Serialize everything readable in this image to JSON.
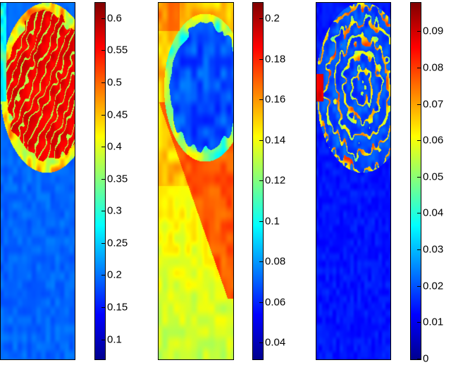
{
  "panels": [
    {
      "name": "panel-1",
      "colorbar": {
        "min": 0.07,
        "max": 0.625,
        "ticks": [
          "0.1",
          "0.15",
          "0.2",
          "0.25",
          "0.3",
          "0.35",
          "0.4",
          "0.45",
          "0.5",
          "0.55",
          "0.6"
        ],
        "values": [
          0.1,
          0.15,
          0.2,
          0.25,
          0.3,
          0.35,
          0.4,
          0.45,
          0.5,
          0.55,
          0.6
        ]
      }
    },
    {
      "name": "panel-2",
      "colorbar": {
        "min": 0.032,
        "max": 0.208,
        "ticks": [
          "0.04",
          "0.06",
          "0.08",
          "0.1",
          "0.12",
          "0.14",
          "0.16",
          "0.18",
          "0.2"
        ],
        "values": [
          0.04,
          0.06,
          0.08,
          0.1,
          0.12,
          0.14,
          0.16,
          0.18,
          0.2
        ]
      }
    },
    {
      "name": "panel-3",
      "colorbar": {
        "min": 0,
        "max": 0.098,
        "ticks": [
          "0",
          "0.01",
          "0.02",
          "0.03",
          "0.04",
          "0.05",
          "0.06",
          "0.07",
          "0.08",
          "0.09"
        ],
        "values": [
          0,
          0.01,
          0.02,
          0.03,
          0.04,
          0.05,
          0.06,
          0.07,
          0.08,
          0.09
        ]
      }
    }
  ],
  "colormap": [
    "#00008f",
    "#0000ff",
    "#0080ff",
    "#00ffff",
    "#80ff80",
    "#ffff00",
    "#ff8000",
    "#ff0000",
    "#800000"
  ]
}
